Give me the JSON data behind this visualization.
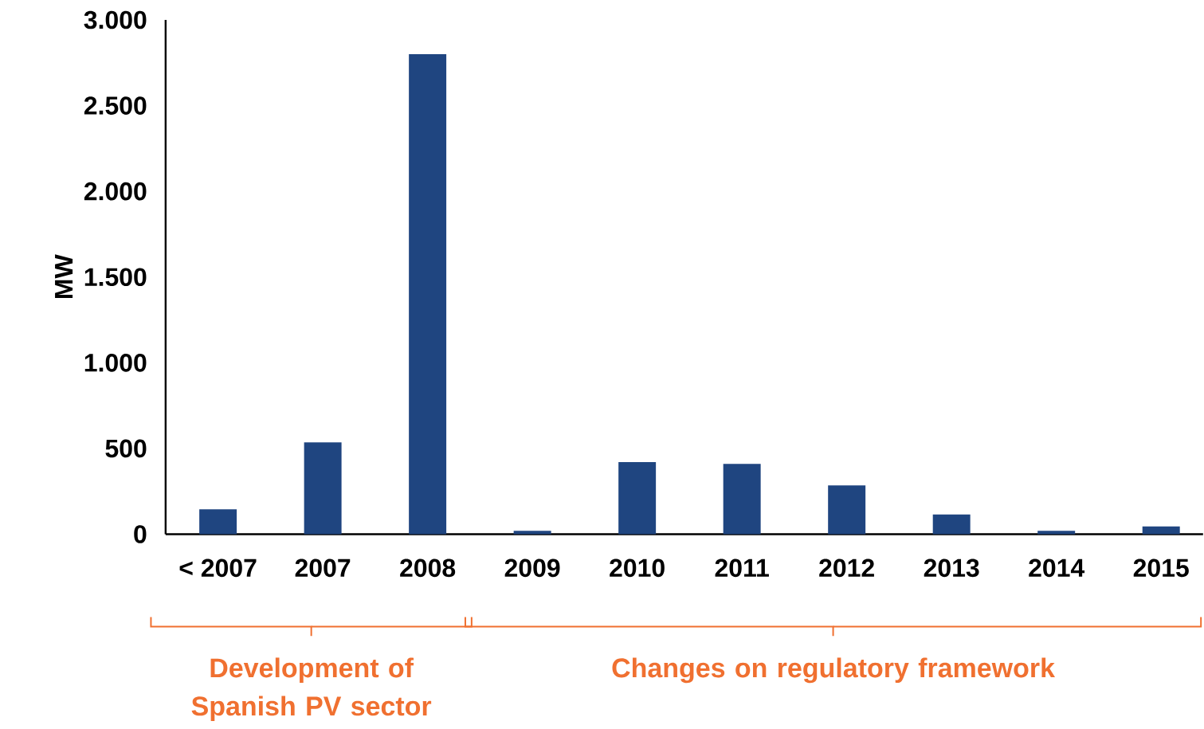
{
  "chart_data": {
    "type": "bar",
    "ylabel": "MW",
    "categories": [
      "< 2007",
      "2007",
      "2008",
      "2009",
      "2010",
      "2011",
      "2012",
      "2013",
      "2014",
      "2015"
    ],
    "values": [
      145,
      535,
      2800,
      20,
      420,
      410,
      285,
      115,
      20,
      45
    ],
    "color": "#1f4580",
    "ylim": [
      0,
      3000
    ],
    "yticks": [
      {
        "value": 0,
        "label": "0"
      },
      {
        "value": 500,
        "label": "500"
      },
      {
        "value": 1000,
        "label": "1.000"
      },
      {
        "value": 1500,
        "label": "1.500"
      },
      {
        "value": 2000,
        "label": "2.000"
      },
      {
        "value": 2500,
        "label": "2.500"
      },
      {
        "value": 3000,
        "label": "3.000"
      }
    ],
    "grid": false,
    "annotations": [
      "Development of Spanish PV sector",
      "Changes on regulatory framework"
    ]
  }
}
